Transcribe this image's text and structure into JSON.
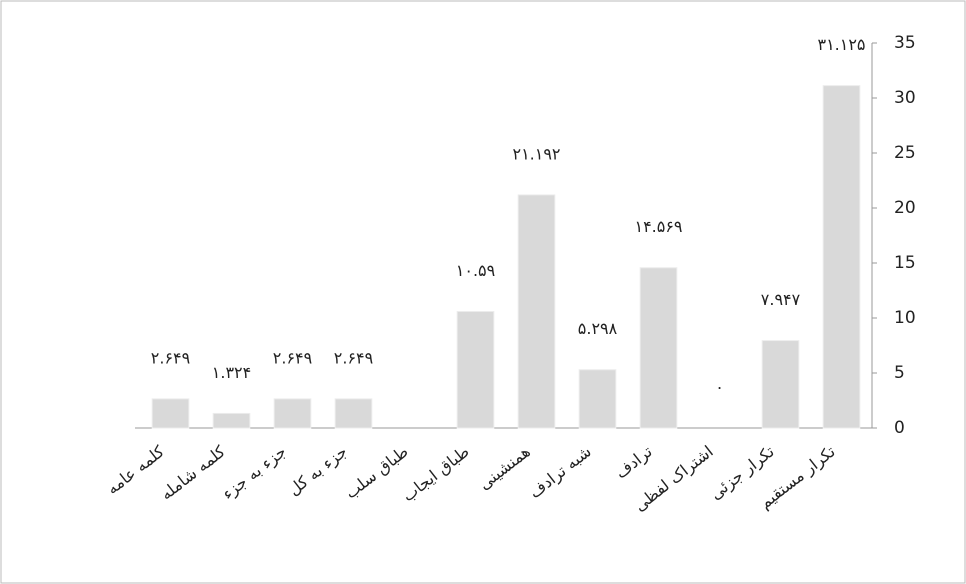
{
  "chart_data": {
    "type": "bar",
    "categories": [
      "کلمه عامه",
      "کلمه شامله",
      "جزء به جزء",
      "جزء به کل",
      "طباق سلب",
      "طباق ایجاب",
      "همنشینی",
      "شبه ترادف",
      "ترادف",
      "اشتراک لفظی",
      "تکرار جزئی",
      "تکرار مستقیم"
    ],
    "values": [
      2.649,
      1.324,
      2.649,
      2.649,
      null,
      10.59,
      21.192,
      5.298,
      14.569,
      0,
      7.947,
      31.125
    ],
    "value_labels": [
      "۲.۶۴۹",
      "۱.۳۲۴",
      "۲.۶۴۹",
      "۲.۶۴۹",
      null,
      "۱۰.۵۹",
      "۲۱.۱۹۲",
      "۵.۲۹۸",
      "۱۴.۵۶۹",
      "۰",
      "۷.۹۴۷",
      "۳۱.۱۲۵"
    ],
    "color": "#d9d9d9",
    "ylim": [
      0,
      35
    ],
    "yticks": [
      0,
      5,
      10,
      15,
      20,
      25,
      30,
      35
    ]
  }
}
